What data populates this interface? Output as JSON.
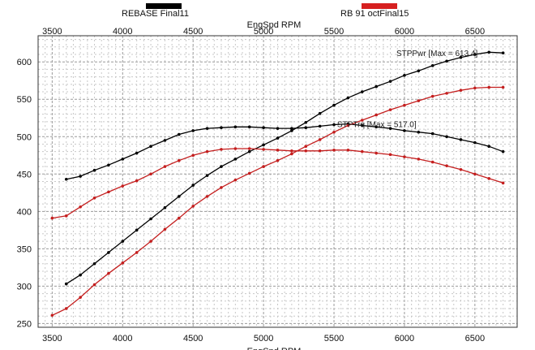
{
  "chart_data": {
    "type": "line",
    "xlabel": "EngSpd RPM",
    "xlim": [
      3400,
      6800
    ],
    "ylim": [
      245,
      635
    ],
    "x_ticks": [
      3500,
      4000,
      4500,
      5000,
      5500,
      6000,
      6500
    ],
    "y_ticks": [
      250,
      300,
      350,
      400,
      450,
      500,
      550,
      600
    ],
    "grid": true,
    "legend": {
      "placement": "top",
      "entries": [
        {
          "name": "REBASE Final11",
          "color": "#000000"
        },
        {
          "name": "RB 91 octFinal15",
          "color": "#d62020"
        }
      ]
    },
    "annotations": [
      {
        "text": "STPPwr [Max = 613.4]",
        "x": 6000,
        "y": 612
      },
      {
        "text": "STPTrq [Max = 517.0]",
        "x": 5580,
        "y": 517
      }
    ],
    "series": [
      {
        "name": "REBASE Final11",
        "metric": "power",
        "color": "#000000",
        "x": [
          3600,
          3700,
          3800,
          3900,
          4000,
          4100,
          4200,
          4300,
          4400,
          4500,
          4600,
          4700,
          4800,
          4900,
          5000,
          5100,
          5200,
          5300,
          5400,
          5500,
          5600,
          5700,
          5800,
          5900,
          6000,
          6100,
          6200,
          6300,
          6400,
          6500,
          6600,
          6700
        ],
        "values": [
          303,
          315,
          330,
          345,
          360,
          375,
          390,
          405,
          420,
          435,
          448,
          460,
          470,
          480,
          489,
          498,
          508,
          519,
          531,
          542,
          552,
          560,
          567,
          574,
          582,
          588,
          595,
          601,
          606,
          610,
          613,
          612
        ]
      },
      {
        "name": "REBASE Final11",
        "metric": "torque",
        "color": "#000000",
        "x": [
          3600,
          3700,
          3800,
          3900,
          4000,
          4100,
          4200,
          4300,
          4400,
          4500,
          4600,
          4700,
          4800,
          4900,
          5000,
          5100,
          5200,
          5300,
          5400,
          5500,
          5600,
          5700,
          5800,
          5900,
          6000,
          6100,
          6200,
          6300,
          6400,
          6500,
          6600,
          6700
        ],
        "values": [
          443,
          447,
          455,
          462,
          470,
          478,
          487,
          495,
          503,
          508,
          511,
          512,
          513,
          513,
          512,
          511,
          511,
          512,
          514,
          516,
          517,
          515,
          513,
          511,
          508,
          506,
          504,
          500,
          496,
          492,
          487,
          480
        ]
      },
      {
        "name": "RB 91 octFinal15",
        "metric": "power",
        "color": "#c41e1e",
        "x": [
          3500,
          3600,
          3700,
          3800,
          3900,
          4000,
          4100,
          4200,
          4300,
          4400,
          4500,
          4600,
          4700,
          4800,
          4900,
          5000,
          5100,
          5200,
          5300,
          5400,
          5500,
          5600,
          5700,
          5800,
          5900,
          6000,
          6100,
          6200,
          6300,
          6400,
          6500,
          6600,
          6700
        ],
        "values": [
          261,
          270,
          285,
          302,
          317,
          331,
          345,
          360,
          376,
          391,
          407,
          420,
          432,
          442,
          451,
          460,
          468,
          477,
          487,
          496,
          506,
          515,
          522,
          529,
          536,
          542,
          548,
          554,
          558,
          562,
          565,
          566,
          566
        ]
      },
      {
        "name": "RB 91 octFinal15",
        "metric": "torque",
        "color": "#c41e1e",
        "x": [
          3500,
          3600,
          3700,
          3800,
          3900,
          4000,
          4100,
          4200,
          4300,
          4400,
          4500,
          4600,
          4700,
          4800,
          4900,
          5000,
          5100,
          5200,
          5300,
          5400,
          5500,
          5600,
          5700,
          5800,
          5900,
          6000,
          6100,
          6200,
          6300,
          6400,
          6500,
          6600,
          6700
        ],
        "values": [
          391,
          394,
          406,
          418,
          426,
          434,
          441,
          450,
          460,
          468,
          475,
          480,
          483,
          484,
          484,
          483,
          482,
          481,
          481,
          481,
          482,
          482,
          480,
          478,
          476,
          473,
          470,
          466,
          461,
          456,
          450,
          444,
          438
        ]
      }
    ]
  }
}
